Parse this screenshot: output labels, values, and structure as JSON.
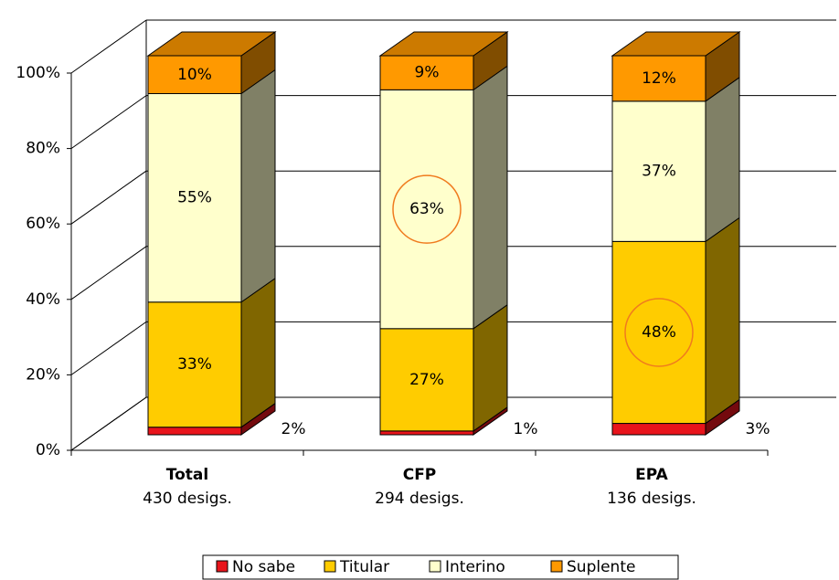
{
  "chart_data": {
    "type": "bar3d_stacked",
    "categories": [
      "Total",
      "CFP",
      "EPA"
    ],
    "category_notes": [
      "430 desigs.",
      "294 desigs.",
      "136 desigs."
    ],
    "series": [
      {
        "name": "No sabe",
        "color": "#e8141b",
        "values": [
          2,
          1,
          3
        ],
        "value_labels": [
          "2%",
          "1%",
          "3%"
        ]
      },
      {
        "name": "Titular",
        "color": "#ffcc00",
        "values": [
          33,
          27,
          48
        ],
        "value_labels": [
          "33%",
          "27%",
          "48%"
        ]
      },
      {
        "name": "Interino",
        "color": "#ffffcc",
        "values": [
          55,
          63,
          37
        ],
        "value_labels": [
          "55%",
          "63%",
          "37%"
        ]
      },
      {
        "name": "Suplente",
        "color": "#ff9900",
        "values": [
          10,
          9,
          12
        ],
        "value_labels": [
          "10%",
          "9%",
          "12%"
        ]
      }
    ],
    "highlighted": [
      {
        "series": 2,
        "index": 1
      },
      {
        "series": 1,
        "index": 2
      }
    ],
    "highlight_color": "#f07b1e",
    "ylim": [
      0,
      100
    ],
    "yticks": [
      {
        "value": 0,
        "label": "0%"
      },
      {
        "value": 20,
        "label": "20%"
      },
      {
        "value": 40,
        "label": "40%"
      },
      {
        "value": 60,
        "label": "60%"
      },
      {
        "value": 80,
        "label": "80%"
      },
      {
        "value": 100,
        "label": "100%"
      }
    ],
    "grid": true,
    "legend": "bottom"
  }
}
